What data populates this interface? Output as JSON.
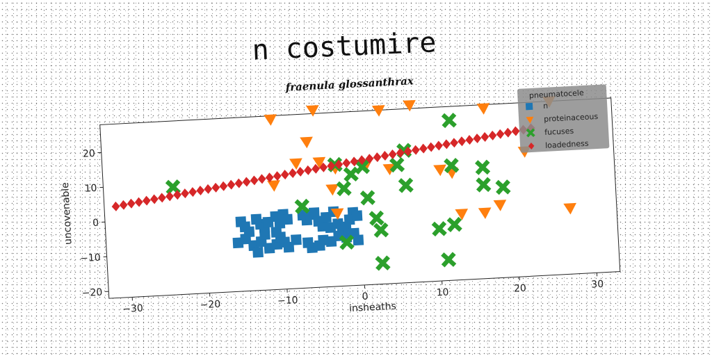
{
  "page_title": "n costumire",
  "chart_data": {
    "type": "scatter",
    "title": "fraenula glossanthrax",
    "xlabel": "insheaths",
    "ylabel": "uncovenable",
    "xlim": [
      -33,
      33
    ],
    "ylim": [
      -22,
      28
    ],
    "xticks": [
      -30,
      -20,
      -10,
      0,
      10,
      20,
      30
    ],
    "yticks": [
      -20,
      -10,
      0,
      10,
      20
    ],
    "xtick_labels": [
      "−30",
      "−20",
      "−10",
      "0",
      "10",
      "20",
      "30"
    ],
    "ytick_labels": [
      "−20",
      "−10",
      "0",
      "10",
      "20"
    ],
    "grid": false,
    "legend": {
      "title": "pneumatocele",
      "placement": "top-right"
    },
    "series": [
      {
        "name": "n",
        "marker": "square",
        "color": "#1f77b4",
        "points": [
          [
            -15.5,
            -2
          ],
          [
            -15,
            -3.5
          ],
          [
            -14.5,
            -5
          ],
          [
            -13.5,
            -1.5
          ],
          [
            -13,
            -3
          ],
          [
            -12.5,
            -4
          ],
          [
            -12,
            -2.5
          ],
          [
            -11,
            -1
          ],
          [
            -10.5,
            -3
          ],
          [
            -10,
            -0.5
          ],
          [
            -9.5,
            -2
          ],
          [
            -16,
            -8
          ],
          [
            -15,
            -7
          ],
          [
            -14,
            -9
          ],
          [
            -13,
            -8
          ],
          [
            -12,
            -10
          ],
          [
            -11,
            -9
          ],
          [
            -10.5,
            -7
          ],
          [
            -10,
            -8.5
          ],
          [
            -9.5,
            -10
          ],
          [
            -8.5,
            -8
          ],
          [
            -12.5,
            -6
          ],
          [
            -11,
            -5.5
          ],
          [
            -7.5,
            -1
          ],
          [
            -7,
            -2.5
          ],
          [
            -6.5,
            -1
          ],
          [
            -6,
            -0.5
          ],
          [
            -5.5,
            -3
          ],
          [
            -5,
            -4.5
          ],
          [
            -4.5,
            -2
          ],
          [
            -4,
            -5
          ],
          [
            -3,
            -4
          ],
          [
            -2.5,
            -6.5
          ],
          [
            -2,
            -5
          ],
          [
            -1.5,
            -3
          ],
          [
            -1,
            -1
          ],
          [
            -0.5,
            -2
          ],
          [
            -1,
            -7
          ],
          [
            -0.5,
            -9
          ],
          [
            -2,
            -8
          ],
          [
            -3,
            -7.5
          ],
          [
            -4,
            -9
          ],
          [
            -5,
            -8.5
          ],
          [
            -5.5,
            -10
          ],
          [
            -6.5,
            -10.5
          ],
          [
            -7,
            -9
          ],
          [
            -3.5,
            -0.5
          ],
          [
            -13.5,
            -11
          ]
        ]
      },
      {
        "name": "proteinaceous",
        "marker": "triangle-down",
        "color": "#ff7f0e",
        "points": [
          [
            -11,
            27
          ],
          [
            -5.5,
            29
          ],
          [
            -6.5,
            20
          ],
          [
            -8,
            14
          ],
          [
            -5,
            14
          ],
          [
            -3,
            12
          ],
          [
            1,
            12.5
          ],
          [
            3,
            28
          ],
          [
            7,
            29
          ],
          [
            -11,
            8
          ],
          [
            -3.5,
            6
          ],
          [
            -3,
            -1
          ],
          [
            10.5,
            10
          ],
          [
            16.5,
            27
          ],
          [
            21.5,
            14
          ],
          [
            16,
            -3
          ],
          [
            18,
            -1
          ],
          [
            13,
            -3
          ],
          [
            12,
            9
          ],
          [
            25,
            28
          ],
          [
            27,
            -3
          ],
          [
            4,
            11
          ]
        ]
      },
      {
        "name": "fucuses",
        "marker": "x",
        "color": "#2ca02c",
        "points": [
          [
            -24,
            9
          ],
          [
            -7.5,
            1.5
          ],
          [
            -3,
            13
          ],
          [
            -2,
            6
          ],
          [
            -1,
            10
          ],
          [
            0.5,
            12
          ],
          [
            1,
            3
          ],
          [
            2,
            -3
          ],
          [
            2.5,
            -6.5
          ],
          [
            2.5,
            -16
          ],
          [
            5,
            12
          ],
          [
            6,
            6
          ],
          [
            6,
            16
          ],
          [
            10,
            -7
          ],
          [
            11,
            -16
          ],
          [
            12,
            -6
          ],
          [
            12,
            11
          ],
          [
            12,
            24
          ],
          [
            16,
            5
          ],
          [
            16,
            10
          ],
          [
            18.5,
            4
          ],
          [
            -2,
            -9.5
          ]
        ]
      },
      {
        "name": "loadedness",
        "marker": "diamond",
        "color": "#d62728",
        "points": [
          [
            -31.5,
            4.3
          ],
          [
            -30.5,
            4.6
          ],
          [
            -29.5,
            4.9
          ],
          [
            -28.5,
            5.2
          ],
          [
            -27.5,
            5.5
          ],
          [
            -26.5,
            5.8
          ],
          [
            -25.5,
            6.1
          ],
          [
            -24.5,
            6.4
          ],
          [
            -23.5,
            6.7
          ],
          [
            -22.5,
            7.0
          ],
          [
            -21.5,
            7.3
          ],
          [
            -20.5,
            7.6
          ],
          [
            -19.5,
            7.9
          ],
          [
            -18.5,
            8.2
          ],
          [
            -17.5,
            8.5
          ],
          [
            -16.5,
            8.8
          ],
          [
            -15.5,
            9.1
          ],
          [
            -14.5,
            9.4
          ],
          [
            -13.5,
            9.7
          ],
          [
            -12.5,
            10.0
          ],
          [
            -11.5,
            10.3
          ],
          [
            -10.5,
            10.6
          ],
          [
            -9.5,
            10.9
          ],
          [
            -8.5,
            11.2
          ],
          [
            -7.5,
            11.5
          ],
          [
            -6.5,
            11.8
          ],
          [
            -5.5,
            12.1
          ],
          [
            -4.5,
            12.4
          ],
          [
            -3.5,
            12.7
          ],
          [
            -2.5,
            13.0
          ],
          [
            -1.5,
            13.3
          ],
          [
            -0.5,
            13.6
          ],
          [
            0.5,
            13.9
          ],
          [
            1.5,
            14.2
          ],
          [
            2.5,
            14.5
          ],
          [
            3.5,
            14.8
          ],
          [
            4.5,
            15.1
          ],
          [
            5.5,
            15.4
          ],
          [
            6.5,
            15.7
          ],
          [
            7.5,
            16.0
          ],
          [
            8.5,
            16.3
          ],
          [
            9.5,
            16.6
          ],
          [
            10.5,
            16.9
          ],
          [
            11.5,
            17.2
          ],
          [
            12.5,
            17.5
          ],
          [
            13.5,
            17.8
          ],
          [
            14.5,
            18.1
          ],
          [
            15.5,
            18.4
          ],
          [
            16.5,
            18.7
          ],
          [
            17.5,
            19.0
          ],
          [
            18.5,
            19.3
          ],
          [
            19.5,
            19.6
          ],
          [
            20.5,
            19.9
          ],
          [
            21.5,
            20.2
          ],
          [
            22.5,
            20.5
          ]
        ]
      }
    ]
  }
}
